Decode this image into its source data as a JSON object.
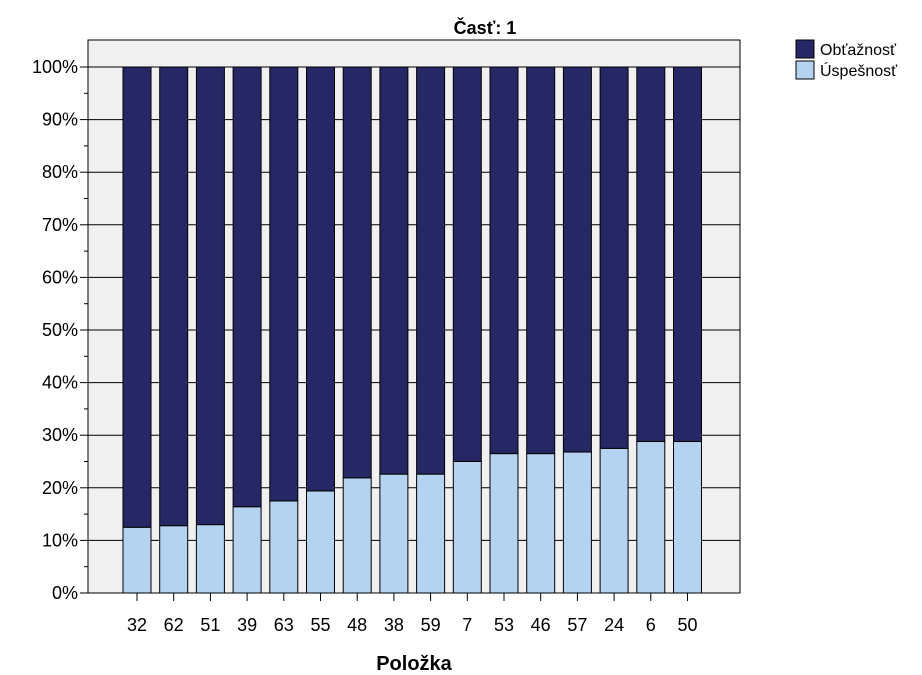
{
  "chart_data": {
    "type": "bar",
    "stacked": true,
    "title": "Časť: 1",
    "xlabel": "Položka",
    "ylabel": "",
    "ylim": [
      0,
      100
    ],
    "yticks": [
      "0%",
      "10%",
      "20%",
      "30%",
      "40%",
      "50%",
      "60%",
      "70%",
      "80%",
      "90%",
      "100%"
    ],
    "categories": [
      "32",
      "62",
      "51",
      "39",
      "63",
      "55",
      "48",
      "38",
      "59",
      "7",
      "53",
      "46",
      "57",
      "24",
      "6",
      "50"
    ],
    "series": [
      {
        "name": "Úspešnosť",
        "color": "#b3d3f0",
        "values": [
          12.5,
          12.8,
          13.0,
          16.4,
          17.5,
          19.4,
          21.9,
          22.6,
          22.6,
          25.0,
          26.5,
          26.5,
          26.8,
          27.5,
          28.8,
          28.8
        ]
      },
      {
        "name": "Obťažnosť",
        "color": "#262865",
        "values": [
          87.5,
          87.2,
          87.0,
          83.6,
          82.5,
          80.6,
          78.1,
          77.4,
          77.4,
          75.0,
          73.5,
          73.5,
          73.2,
          72.5,
          71.2,
          71.2
        ]
      }
    ],
    "legend": {
      "position": "top-right",
      "order": [
        "Obťažnosť",
        "Úspešnosť"
      ]
    },
    "grid": true,
    "plot_background": "#f0f0f0"
  }
}
